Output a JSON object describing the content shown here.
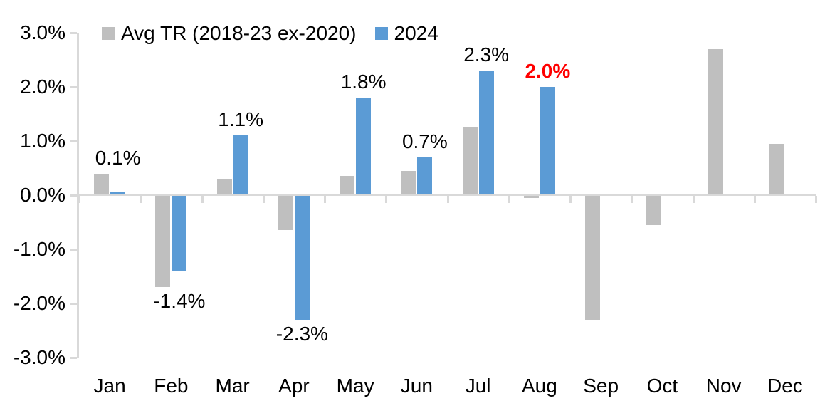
{
  "chart_data": {
    "type": "bar",
    "title": "",
    "categories": [
      "Jan",
      "Feb",
      "Mar",
      "Apr",
      "May",
      "Jun",
      "Jul",
      "Aug",
      "Sep",
      "Oct",
      "Nov",
      "Dec"
    ],
    "series": [
      {
        "name": "Avg TR (2018-23 ex-2020)",
        "color": "#bfbfbf",
        "values": [
          0.4,
          -1.7,
          0.3,
          -0.65,
          0.35,
          0.45,
          1.25,
          -0.05,
          -2.3,
          -0.55,
          2.7,
          0.95
        ],
        "labels": [
          null,
          null,
          null,
          null,
          null,
          null,
          null,
          null,
          null,
          null,
          null,
          null
        ]
      },
      {
        "name": "2024",
        "color": "#5b9bd5",
        "values": [
          0.05,
          -1.4,
          1.1,
          -2.3,
          1.8,
          0.7,
          2.3,
          2.0,
          null,
          null,
          null,
          null
        ],
        "labels": [
          "0.1%",
          "-1.4%",
          "1.1%",
          "-2.3%",
          "1.8%",
          "0.7%",
          "2.3%",
          "2.0%",
          null,
          null,
          null,
          null
        ],
        "label_highlight": {
          "index": 7,
          "color": "#ff0000",
          "bold": true
        }
      }
    ],
    "ylim": [
      -3,
      3
    ],
    "ytick_step": 1,
    "ytick_labels": [
      "3.0%",
      "2.0%",
      "1.0%",
      "0.0%",
      "-1.0%",
      "-2.0%",
      "-3.0%"
    ],
    "legend_position": "top",
    "grid": false,
    "axis_color": "#d9d9d9",
    "text_color": "#000000",
    "label_color_default": "#000000"
  }
}
